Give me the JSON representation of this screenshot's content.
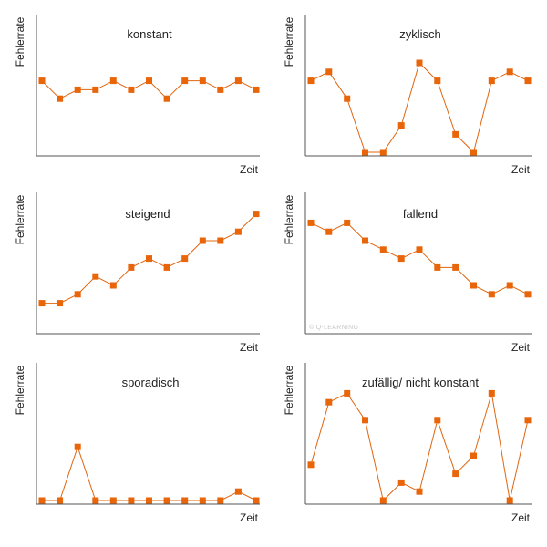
{
  "colors": {
    "series": "#e8650a",
    "axis": "#555555",
    "text": "#222222",
    "watermark": "#c8c8c8"
  },
  "watermark": "© Q-LEARNING",
  "chart_data": [
    {
      "type": "line",
      "title": "konstant",
      "xlabel": "Zeit",
      "ylabel": "Fehlerrate",
      "x": [
        1,
        2,
        3,
        4,
        5,
        6,
        7,
        8,
        9,
        10,
        11,
        12,
        13
      ],
      "values": [
        8,
        6,
        7,
        7,
        8,
        7,
        8,
        6,
        8,
        8,
        7,
        8,
        7
      ],
      "xlim": [
        0.5,
        13.5
      ],
      "ylim": [
        0,
        16
      ],
      "grid": false,
      "legend": "none"
    },
    {
      "type": "line",
      "title": "zyklisch",
      "xlabel": "Zeit",
      "ylabel": "Fehlerrate",
      "x": [
        1,
        2,
        3,
        4,
        5,
        6,
        7,
        8,
        9,
        10,
        11,
        12,
        13
      ],
      "values": [
        8,
        9,
        6,
        0,
        0,
        3,
        10,
        8,
        2,
        0,
        8,
        9,
        8
      ],
      "xlim": [
        0.5,
        13.5
      ],
      "ylim": [
        0,
        16
      ],
      "grid": false,
      "legend": "none"
    },
    {
      "type": "line",
      "title": "steigend",
      "xlabel": "Zeit",
      "ylabel": "Fehlerrate",
      "x": [
        1,
        2,
        3,
        4,
        5,
        6,
        7,
        8,
        9,
        10,
        11,
        12,
        13
      ],
      "values": [
        3,
        3,
        4,
        6,
        5,
        7,
        8,
        7,
        8,
        10,
        10,
        11,
        13
      ],
      "xlim": [
        0.5,
        13.5
      ],
      "ylim": [
        0,
        16
      ],
      "grid": false,
      "legend": "none"
    },
    {
      "type": "line",
      "title": "fallend",
      "xlabel": "Zeit",
      "ylabel": "Fehlerrate",
      "x": [
        1,
        2,
        3,
        4,
        5,
        6,
        7,
        8,
        9,
        10,
        11,
        12,
        13
      ],
      "values": [
        12,
        11,
        12,
        10,
        9,
        8,
        9,
        7,
        7,
        5,
        4,
        5,
        4
      ],
      "xlim": [
        0.5,
        13.5
      ],
      "ylim": [
        0,
        16
      ],
      "grid": false,
      "legend": "none"
    },
    {
      "type": "line",
      "title": "sporadisch",
      "xlabel": "Zeit",
      "ylabel": "Fehlerrate",
      "x": [
        1,
        2,
        3,
        4,
        5,
        6,
        7,
        8,
        9,
        10,
        11,
        12,
        13
      ],
      "values": [
        0,
        0,
        6,
        0,
        0,
        0,
        0,
        0,
        0,
        0,
        0,
        1,
        0
      ],
      "xlim": [
        0.5,
        13.5
      ],
      "ylim": [
        0,
        16
      ],
      "grid": false,
      "legend": "none"
    },
    {
      "type": "line",
      "title": "zufällig/ nicht konstant",
      "xlabel": "Zeit",
      "ylabel": "Fehlerrate",
      "x": [
        1,
        2,
        3,
        4,
        5,
        6,
        7,
        8,
        9,
        10,
        11,
        12,
        13
      ],
      "values": [
        4,
        11,
        12,
        9,
        0,
        2,
        1,
        9,
        3,
        5,
        12,
        0,
        9
      ],
      "xlim": [
        0.5,
        13.5
      ],
      "ylim": [
        0,
        16
      ],
      "grid": false,
      "legend": "none"
    }
  ]
}
